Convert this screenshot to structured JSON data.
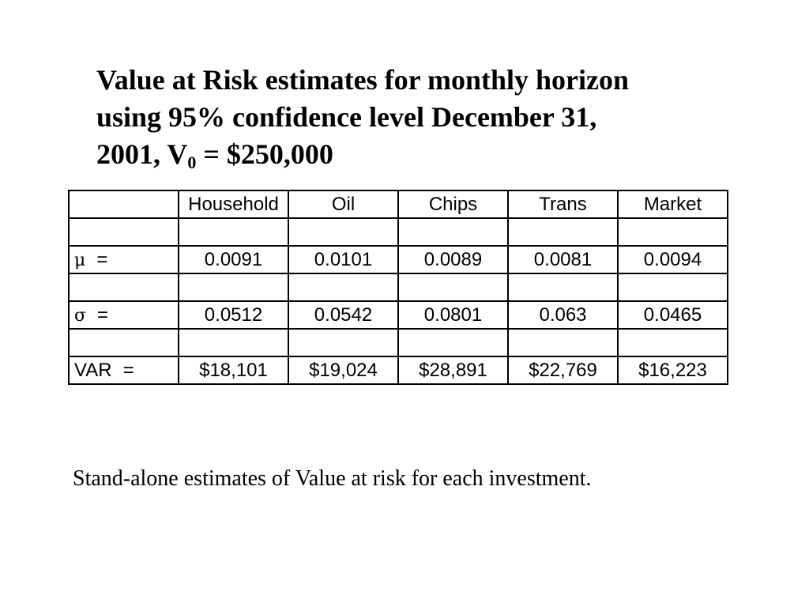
{
  "title": {
    "line1": "Value at Risk estimates for monthly horizon",
    "line2": "using 95% confidence level December 31,",
    "line3_pre": "2001, V",
    "subscript": "0",
    "line3_post": " = $250,000"
  },
  "table": {
    "headers": [
      "",
      "Household",
      "Oil",
      "Chips",
      "Trans",
      "Market"
    ],
    "mu_row": {
      "symbol": "μ",
      "eq": "=",
      "values": [
        "0.0091",
        "0.0101",
        "0.0089",
        "0.0081",
        "0.0094"
      ]
    },
    "sigma_row": {
      "symbol": "σ",
      "eq": "=",
      "values": [
        "0.0512",
        "0.0542",
        "0.0801",
        "0.063",
        "0.0465"
      ]
    },
    "var_row": {
      "label": "VAR",
      "eq": "=",
      "values": [
        "$18,101",
        "$19,024",
        "$28,891",
        "$22,769",
        "$16,223"
      ]
    }
  },
  "caption": "Stand-alone estimates of Value at risk for each investment."
}
